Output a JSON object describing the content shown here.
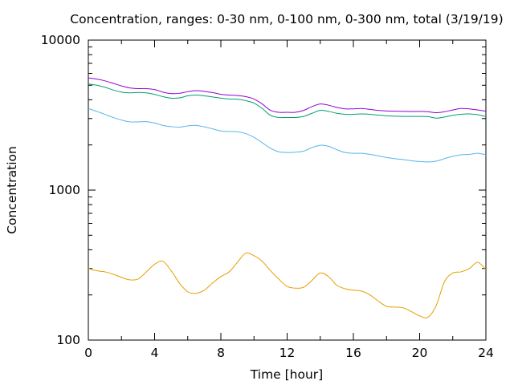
{
  "chart_data": {
    "type": "line",
    "title": "Concentration, ranges: 0-30 nm, 0-100 nm, 0-300 nm, total (3/19/19)",
    "xlabel": "Time [hour]",
    "ylabel": "Concentration",
    "xlim": [
      0,
      24
    ],
    "ylim": [
      100,
      10000
    ],
    "yscale": "log",
    "grid": false,
    "legend": "none",
    "xticks": [
      "0",
      "4",
      "8",
      "12",
      "16",
      "20",
      "24"
    ],
    "yticks": [
      "100",
      "1000",
      "10000"
    ],
    "x": [
      0,
      0.5,
      1,
      1.5,
      2,
      2.5,
      3,
      3.5,
      4,
      4.5,
      5,
      5.5,
      6,
      6.5,
      7,
      7.5,
      8,
      8.5,
      9,
      9.5,
      10,
      10.5,
      11,
      11.5,
      12,
      12.5,
      13,
      13.5,
      14,
      14.5,
      15,
      15.5,
      16,
      16.5,
      17,
      17.5,
      18,
      18.5,
      19,
      19.5,
      20,
      20.5,
      21,
      21.5,
      22,
      22.5,
      23,
      23.5,
      24
    ],
    "series": [
      {
        "color": "#e69f00",
        "values": [
          300,
          290,
          285,
          275,
          262,
          252,
          255,
          285,
          320,
          335,
          290,
          240,
          210,
          205,
          215,
          240,
          265,
          285,
          330,
          380,
          365,
          335,
          290,
          255,
          228,
          222,
          225,
          250,
          280,
          265,
          232,
          220,
          215,
          212,
          200,
          182,
          168,
          166,
          164,
          155,
          145,
          142,
          170,
          245,
          280,
          285,
          300,
          330,
          295
        ]
      },
      {
        "color": "#56b4e9",
        "values": [
          3500,
          3350,
          3200,
          3050,
          2930,
          2850,
          2850,
          2860,
          2800,
          2700,
          2650,
          2630,
          2680,
          2700,
          2640,
          2560,
          2480,
          2460,
          2450,
          2380,
          2250,
          2070,
          1900,
          1800,
          1780,
          1790,
          1820,
          1920,
          1990,
          1960,
          1860,
          1780,
          1760,
          1760,
          1730,
          1690,
          1650,
          1620,
          1600,
          1570,
          1550,
          1540,
          1560,
          1620,
          1680,
          1720,
          1730,
          1760,
          1720
        ]
      },
      {
        "color": "#009e73",
        "values": [
          5100,
          5000,
          4850,
          4650,
          4500,
          4450,
          4480,
          4450,
          4350,
          4200,
          4100,
          4120,
          4250,
          4300,
          4250,
          4180,
          4100,
          4050,
          4030,
          3950,
          3800,
          3500,
          3150,
          3050,
          3050,
          3050,
          3100,
          3250,
          3400,
          3350,
          3250,
          3200,
          3200,
          3220,
          3200,
          3160,
          3130,
          3110,
          3100,
          3100,
          3100,
          3090,
          3020,
          3070,
          3150,
          3200,
          3220,
          3180,
          3090
        ]
      },
      {
        "color": "#9400d3",
        "values": [
          5600,
          5500,
          5350,
          5150,
          4950,
          4800,
          4750,
          4750,
          4680,
          4500,
          4400,
          4420,
          4530,
          4600,
          4550,
          4470,
          4350,
          4300,
          4270,
          4200,
          4050,
          3750,
          3400,
          3300,
          3300,
          3300,
          3400,
          3600,
          3750,
          3680,
          3560,
          3480,
          3480,
          3500,
          3450,
          3400,
          3370,
          3360,
          3350,
          3340,
          3350,
          3330,
          3280,
          3330,
          3420,
          3500,
          3480,
          3420,
          3360
        ]
      }
    ]
  }
}
